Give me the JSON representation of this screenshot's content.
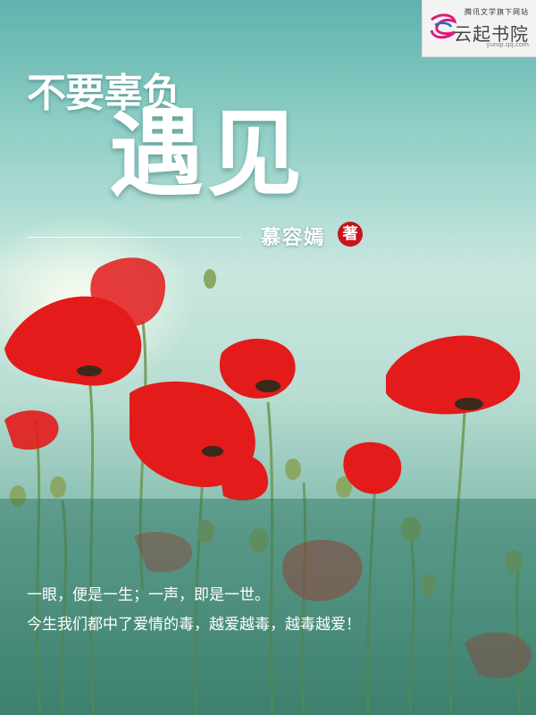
{
  "logo": {
    "tagline": "腾讯文学旗下网站",
    "name": "云起书院",
    "url": "yunqi.qq.com",
    "icon": "yunqi-swirl-icon"
  },
  "title": {
    "line1": "不要辜负",
    "line2": "遇见"
  },
  "author": {
    "name": "慕容嫣",
    "mark": "著"
  },
  "blurb": {
    "line1": "一眼，便是一生；一声，即是一世。",
    "line2": "今生我们都中了爱情的毒，越爱越毒，越毒越爱！"
  },
  "colors": {
    "sky": "#8fcfc6",
    "poppy": "#e31b1b",
    "author_mark": "#c8141a",
    "band": "#2f7a66"
  }
}
